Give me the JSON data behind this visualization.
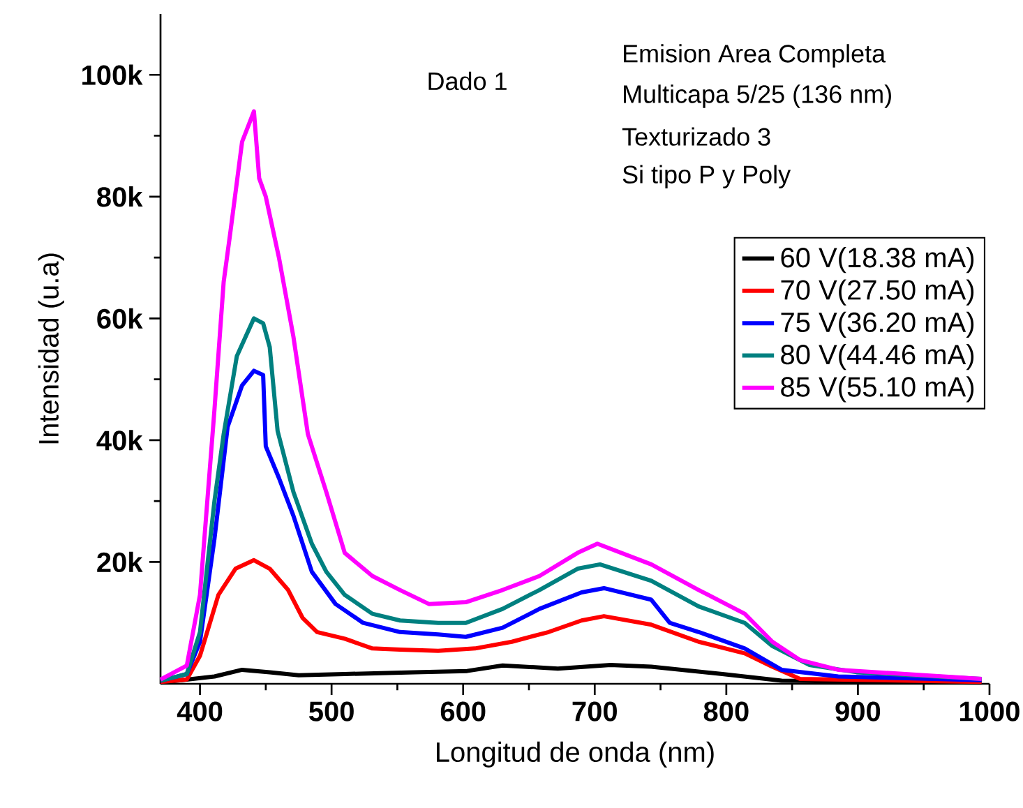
{
  "chart_data": {
    "type": "line",
    "xlabel": "Longitud de onda (nm)",
    "ylabel": "Intensidad (u.a)",
    "annotations": [
      "Dado 1",
      "Emision Area Completa",
      "Multicapa 5/25 (136 nm)",
      "Texturizado 3",
      "Si tipo P y Poly"
    ],
    "xlim": [
      370,
      1000
    ],
    "xticks": [
      400,
      500,
      600,
      700,
      800,
      900,
      1000
    ],
    "ylim": [
      0,
      110000
    ],
    "yticks": [
      {
        "value": 20000,
        "label": "20k"
      },
      {
        "value": 40000,
        "label": "40k"
      },
      {
        "value": 60000,
        "label": "60k"
      },
      {
        "value": 80000,
        "label": "80k"
      },
      {
        "value": 100000,
        "label": "100k"
      }
    ],
    "grid": false,
    "legend": "right",
    "marker": "none",
    "line_style": "solid",
    "series": [
      {
        "name": "60 V(18.38 mA)",
        "color": "#000000",
        "x": [
          370,
          411,
          432,
          453,
          475,
          510,
          563,
          603,
          630,
          672,
          712,
          743,
          797,
          842,
          994
        ],
        "values": [
          200,
          1200,
          2300,
          1900,
          1400,
          1600,
          1900,
          2100,
          3000,
          2500,
          3100,
          2800,
          1600,
          500,
          200
        ]
      },
      {
        "name": "70 V(27.50 mA)",
        "color": "#ff0000",
        "x": [
          370,
          390,
          400,
          414,
          427,
          441,
          453,
          467,
          478,
          489,
          510,
          531,
          552,
          581,
          609,
          637,
          665,
          690,
          707,
          743,
          779,
          814,
          835,
          856,
          994
        ],
        "values": [
          300,
          700,
          4600,
          14600,
          18900,
          20300,
          18900,
          15400,
          10800,
          8500,
          7400,
          5800,
          5600,
          5400,
          5800,
          6900,
          8500,
          10400,
          11100,
          9700,
          6900,
          5000,
          2800,
          800,
          300
        ]
      },
      {
        "name": "75 V(36.20 mA)",
        "color": "#0000ff",
        "x": [
          370,
          390,
          400,
          411,
          421,
          432,
          441,
          448,
          450,
          460,
          471,
          485,
          503,
          524,
          552,
          581,
          602,
          630,
          658,
          690,
          707,
          743,
          757,
          779,
          814,
          842,
          885,
          994
        ],
        "values": [
          500,
          1600,
          6900,
          23800,
          42200,
          49000,
          51400,
          50700,
          39000,
          33800,
          27600,
          18400,
          13100,
          10000,
          8500,
          8100,
          7700,
          9200,
          12300,
          15000,
          15700,
          13800,
          10000,
          8500,
          5800,
          2300,
          1200,
          600
        ]
      },
      {
        "name": "80 V(44.46 mA)",
        "color": "#008080",
        "x": [
          370,
          390,
          400,
          411,
          418,
          428,
          441,
          448,
          453,
          459,
          471,
          485,
          496,
          510,
          531,
          552,
          581,
          602,
          630,
          658,
          687,
          704,
          743,
          779,
          814,
          835,
          863,
          899,
          994
        ],
        "values": [
          500,
          1600,
          8500,
          30000,
          41000,
          53800,
          60000,
          59200,
          55300,
          41500,
          31500,
          23000,
          18400,
          14600,
          11500,
          10400,
          10000,
          10000,
          12300,
          15400,
          18900,
          19600,
          16900,
          12700,
          10000,
          6200,
          3100,
          1900,
          800
        ]
      },
      {
        "name": "85 V(55.10 mA)",
        "color": "#ff00ff",
        "x": [
          370,
          390,
          400,
          411,
          418,
          423,
          432,
          441,
          445,
          450,
          460,
          471,
          482,
          496,
          510,
          531,
          552,
          574,
          602,
          630,
          658,
          687,
          702,
          743,
          779,
          814,
          835,
          856,
          885,
          994
        ],
        "values": [
          700,
          3000,
          14600,
          45000,
          66000,
          74000,
          89000,
          94000,
          83000,
          80000,
          70000,
          57000,
          41000,
          31500,
          21500,
          17700,
          15400,
          13100,
          13400,
          15400,
          17700,
          21500,
          23000,
          19600,
          15400,
          11500,
          6900,
          3900,
          2300,
          800
        ]
      }
    ]
  }
}
